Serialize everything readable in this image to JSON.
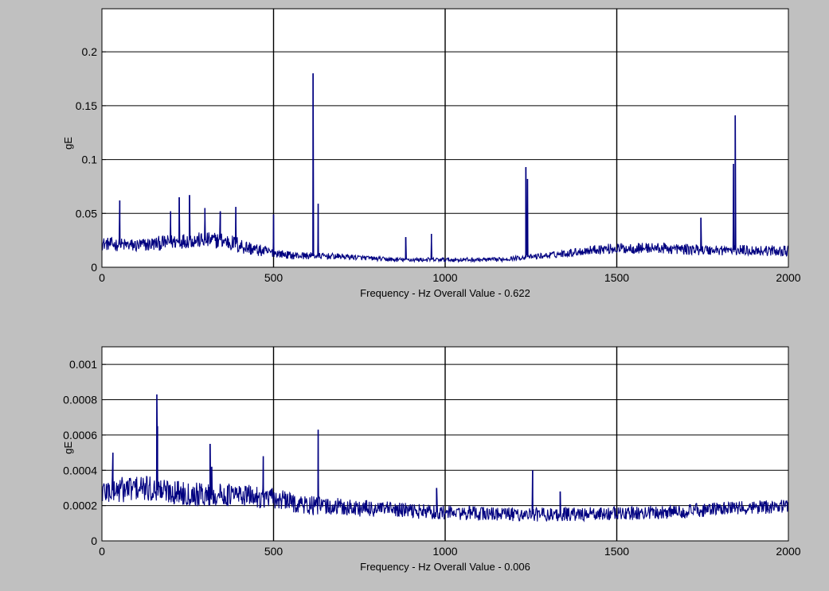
{
  "chart_data": [
    {
      "type": "line",
      "xlabel": "Frequency - Hz  Overall Value - 0.622",
      "ylabel": "gE",
      "xlim": [
        0,
        2000
      ],
      "ylim": [
        0,
        0.24
      ],
      "xticks": [
        0,
        500,
        1000,
        1500,
        2000
      ],
      "xtick_labels": [
        "0",
        "500",
        "1000",
        "1500",
        "2000"
      ],
      "yticks": [
        0,
        0.05,
        0.1,
        0.15,
        0.2
      ],
      "ytick_labels": [
        "0",
        "0.05",
        "0.1",
        "0.15",
        "0.2"
      ],
      "grid": true,
      "line_color": "#000080",
      "baseline": [
        [
          0,
          0.022
        ],
        [
          100,
          0.02
        ],
        [
          250,
          0.025
        ],
        [
          350,
          0.025
        ],
        [
          450,
          0.016
        ],
        [
          550,
          0.011
        ],
        [
          700,
          0.01
        ],
        [
          850,
          0.007
        ],
        [
          1000,
          0.007
        ],
        [
          1150,
          0.007
        ],
        [
          1300,
          0.011
        ],
        [
          1450,
          0.017
        ],
        [
          1600,
          0.018
        ],
        [
          1750,
          0.016
        ],
        [
          1850,
          0.016
        ],
        [
          2000,
          0.015
        ]
      ],
      "noise_amplitude": [
        [
          0,
          0.006
        ],
        [
          400,
          0.008
        ],
        [
          500,
          0.004
        ],
        [
          800,
          0.002
        ],
        [
          1200,
          0.002
        ],
        [
          1500,
          0.005
        ],
        [
          2000,
          0.005
        ]
      ],
      "series": [
        {
          "x": [
            52,
            200,
            225,
            255,
            300,
            345,
            390,
            500,
            615,
            630,
            885,
            960,
            1235,
            1240,
            1745,
            1840,
            1845
          ],
          "y": [
            0.062,
            0.052,
            0.065,
            0.067,
            0.055,
            0.052,
            0.056,
            0.049,
            0.18,
            0.059,
            0.028,
            0.031,
            0.093,
            0.082,
            0.046,
            0.096,
            0.141
          ]
        }
      ]
    },
    {
      "type": "line",
      "xlabel": "Frequency - Hz  Overall Value - 0.006",
      "ylabel": "gE",
      "xlim": [
        0,
        2000
      ],
      "ylim": [
        0,
        0.0011
      ],
      "xticks": [
        0,
        500,
        1000,
        1500,
        2000
      ],
      "xtick_labels": [
        "0",
        "500",
        "1000",
        "1500",
        "2000"
      ],
      "yticks": [
        0,
        0.0002,
        0.0004,
        0.0006,
        0.0008,
        0.001
      ],
      "ytick_labels": [
        "0",
        "0.0002",
        "0.0004",
        "0.0006",
        "0.0008",
        "0.001"
      ],
      "grid": true,
      "line_color": "#000080",
      "baseline": [
        [
          0,
          0.00028
        ],
        [
          100,
          0.0003
        ],
        [
          200,
          0.00028
        ],
        [
          300,
          0.00026
        ],
        [
          400,
          0.00026
        ],
        [
          500,
          0.00024
        ],
        [
          600,
          0.0002
        ],
        [
          800,
          0.00018
        ],
        [
          1000,
          0.00016
        ],
        [
          1200,
          0.00015
        ],
        [
          1400,
          0.00015
        ],
        [
          1600,
          0.00016
        ],
        [
          1800,
          0.00018
        ],
        [
          2000,
          0.0002
        ]
      ],
      "noise_amplitude": [
        [
          0,
          8e-05
        ],
        [
          500,
          6e-05
        ],
        [
          1000,
          4e-05
        ],
        [
          2000,
          4e-05
        ]
      ],
      "series": [
        {
          "x": [
            32,
            160,
            162,
            315,
            320,
            470,
            630,
            975,
            1255,
            1335
          ],
          "y": [
            0.0005,
            0.00083,
            0.00065,
            0.00055,
            0.00042,
            0.00048,
            0.00063,
            0.0003,
            0.0004,
            0.00028
          ]
        }
      ]
    }
  ]
}
